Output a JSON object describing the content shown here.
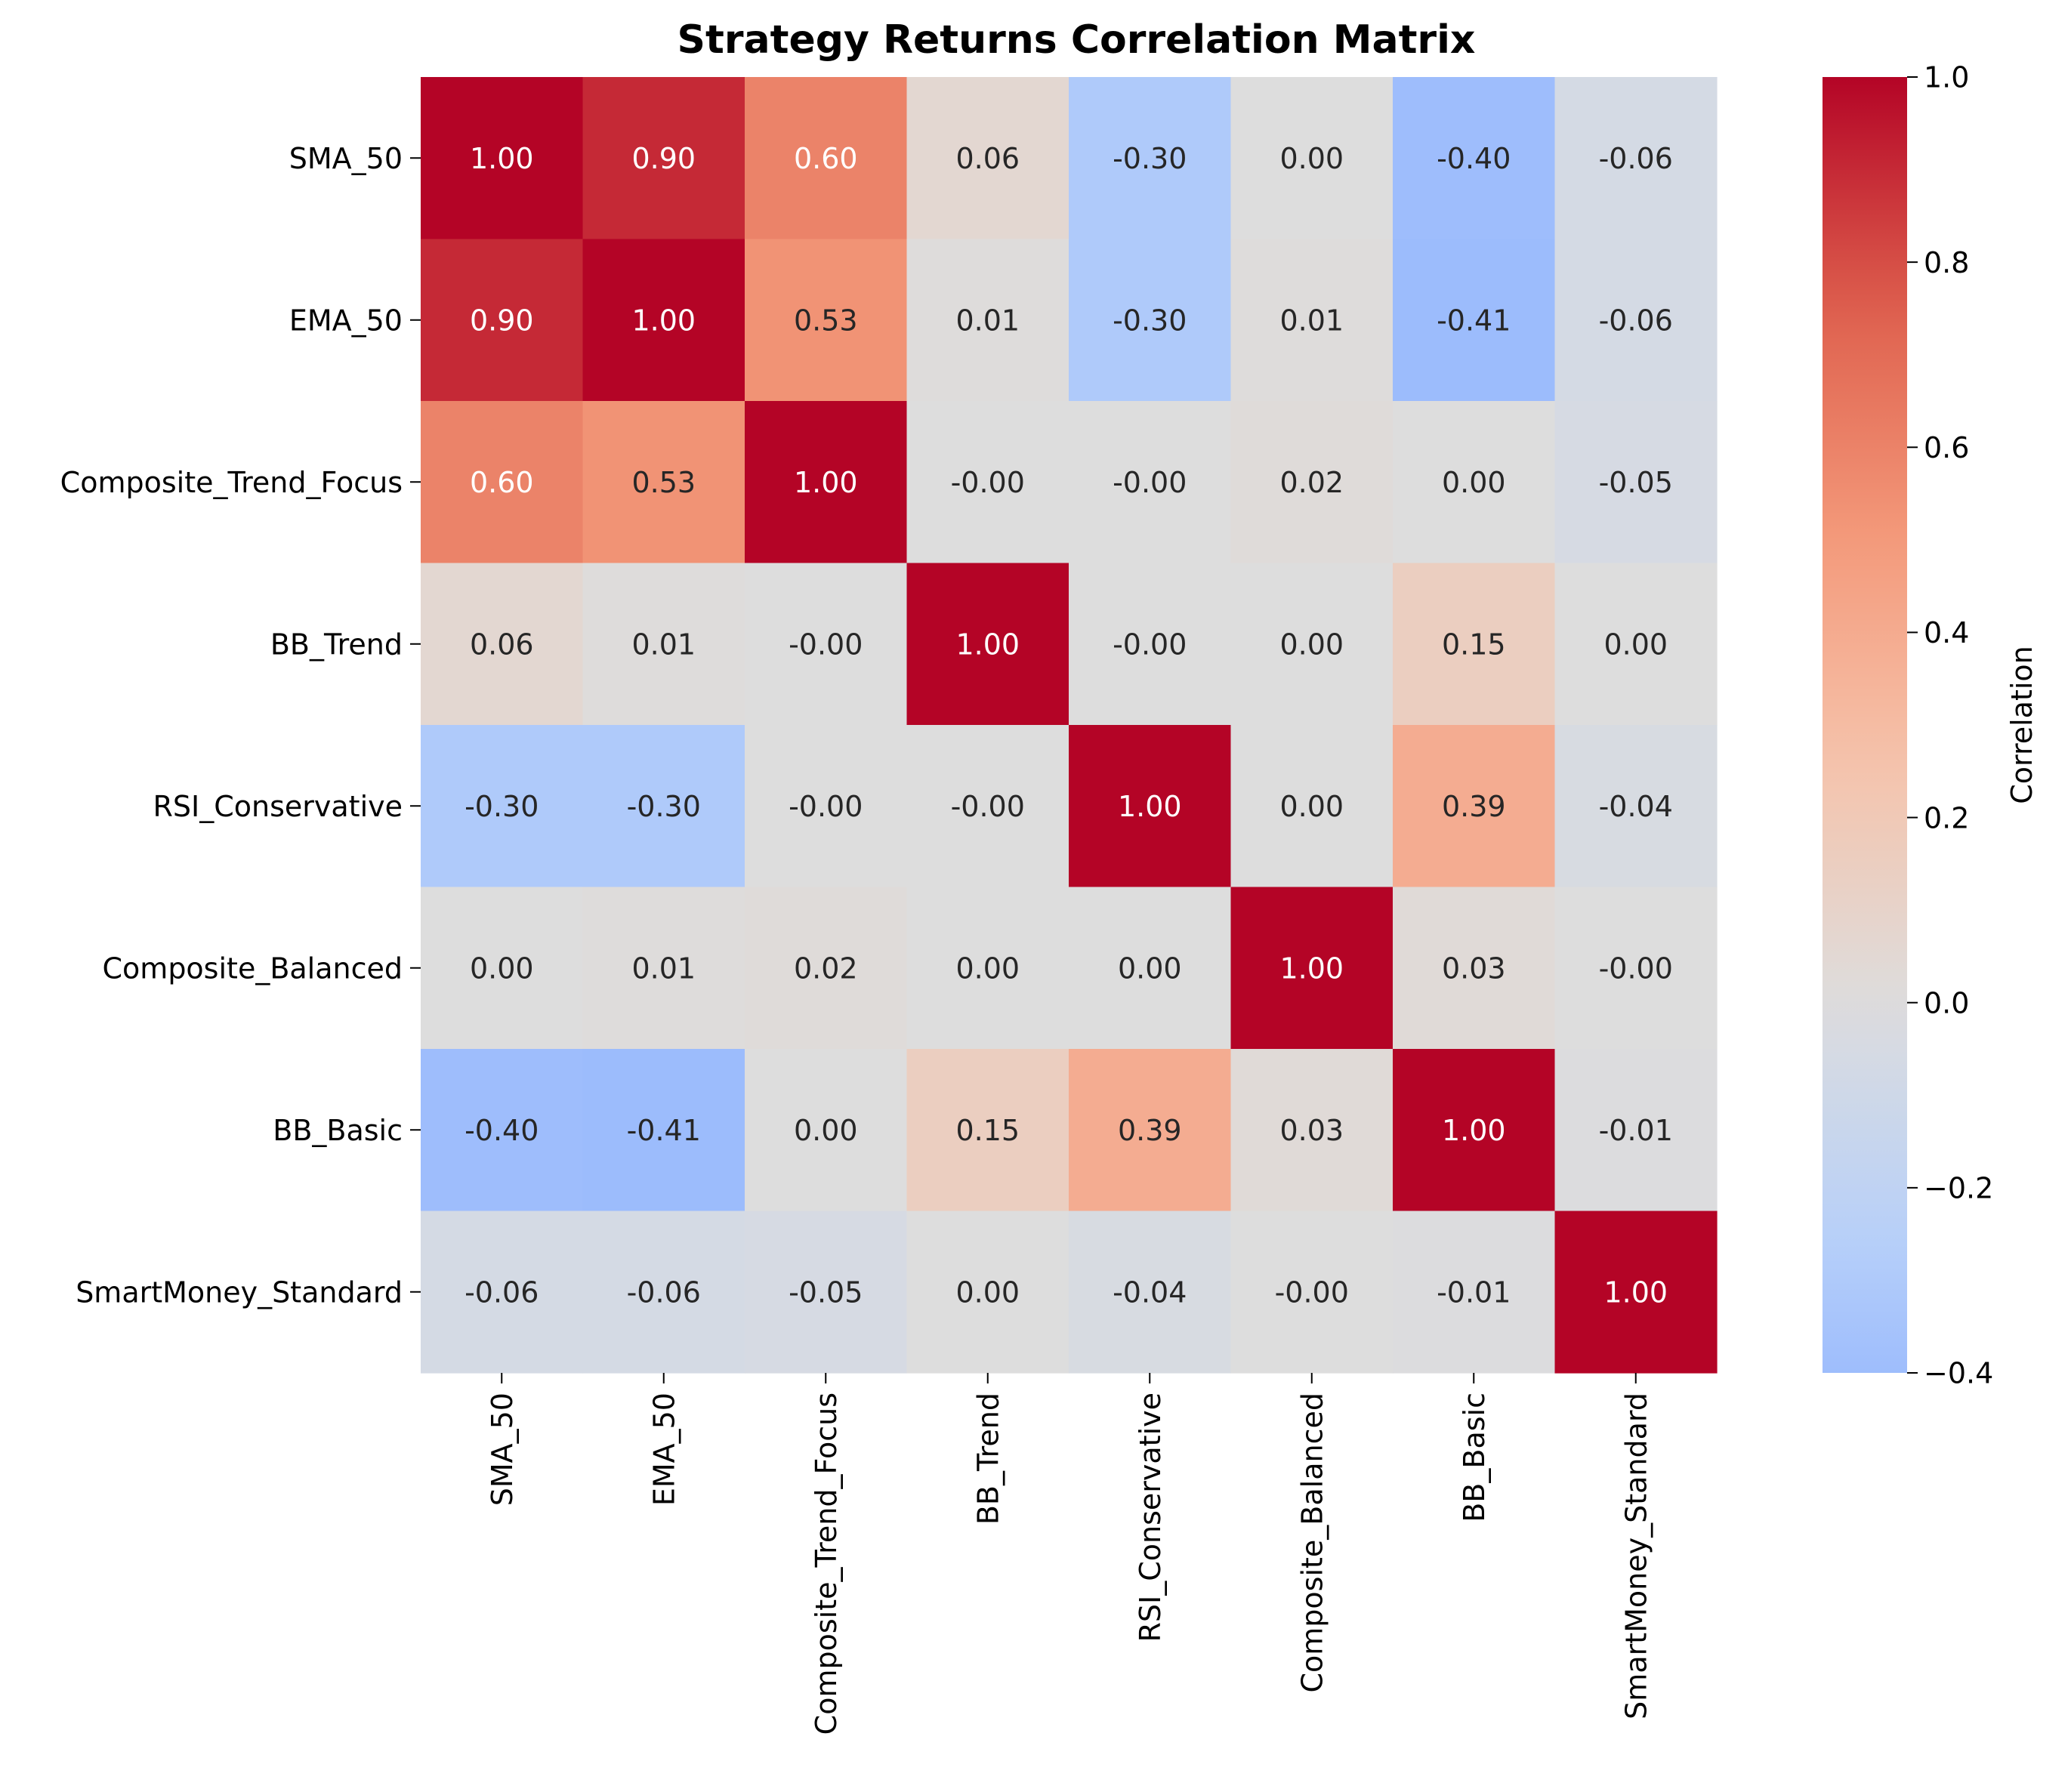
{
  "chart_data": {
    "type": "heatmap",
    "title": "Strategy Returns Correlation Matrix",
    "xlabel": "",
    "ylabel": "",
    "labels": [
      "SMA_50",
      "EMA_50",
      "Composite_Trend_Focus",
      "BB_Trend",
      "RSI_Conservative",
      "Composite_Balanced",
      "BB_Basic",
      "SmartMoney_Standard"
    ],
    "matrix": [
      [
        1.0,
        0.9,
        0.6,
        0.06,
        -0.3,
        0.0,
        -0.4,
        -0.06
      ],
      [
        0.9,
        1.0,
        0.53,
        0.01,
        -0.3,
        0.01,
        -0.41,
        -0.06
      ],
      [
        0.6,
        0.53,
        1.0,
        -0.0,
        -0.0,
        0.02,
        0.0,
        -0.05
      ],
      [
        0.06,
        0.01,
        -0.0,
        1.0,
        -0.0,
        0.0,
        0.15,
        0.0
      ],
      [
        -0.3,
        -0.3,
        -0.0,
        -0.0,
        1.0,
        0.0,
        0.39,
        -0.04
      ],
      [
        0.0,
        0.01,
        0.02,
        0.0,
        0.0,
        1.0,
        0.03,
        -0.0
      ],
      [
        -0.4,
        -0.41,
        0.0,
        0.15,
        0.39,
        0.03,
        1.0,
        -0.01
      ],
      [
        -0.06,
        -0.06,
        -0.05,
        0.0,
        -0.04,
        -0.0,
        -0.01,
        1.0
      ]
    ],
    "value_format": "2 decimals",
    "colormap": "coolwarm",
    "vmin": -0.4,
    "vmax": 1.0,
    "colorbar": {
      "label": "Correlation",
      "ticks": [
        1.0,
        0.8,
        0.6,
        0.4,
        0.2,
        0.0,
        -0.2,
        -0.4
      ],
      "tick_labels": [
        "1.0",
        "0.8",
        "0.6",
        "0.4",
        "0.2",
        "0.0",
        "−0.2",
        "−0.4"
      ],
      "placement": "right"
    },
    "grid": false
  }
}
